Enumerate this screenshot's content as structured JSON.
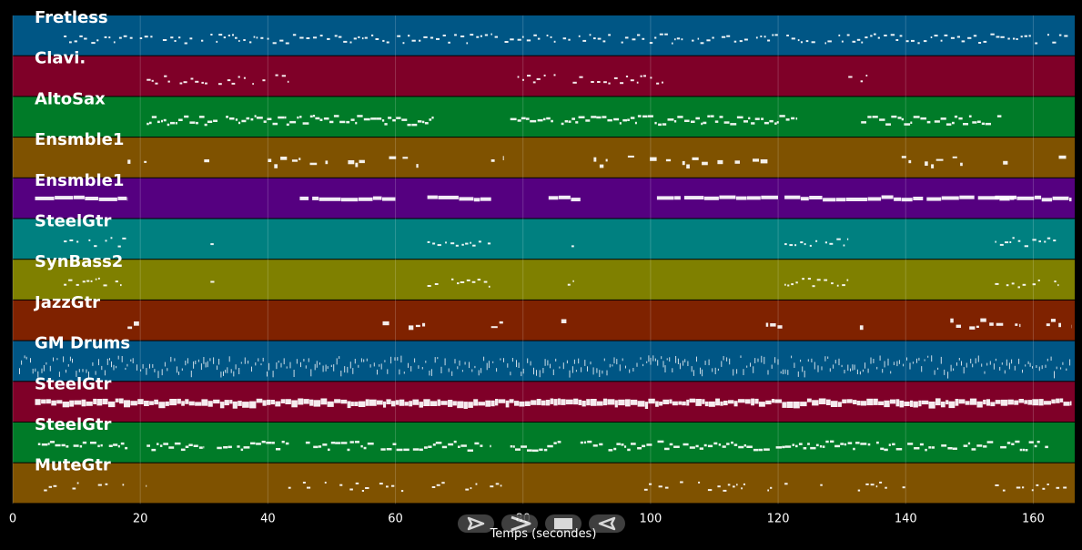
{
  "chart_data": {
    "type": "piano-roll",
    "xlabel": "Temps (secondes)",
    "xlim": [
      0,
      166.5
    ],
    "xticks": [
      0,
      20,
      40,
      60,
      80,
      100,
      120,
      140,
      160
    ],
    "grid": true,
    "tracks": [
      {
        "name": "Fretless",
        "color": "#005685",
        "density": 0.85,
        "style": "sparse",
        "segments": [
          [
            8,
            166
          ]
        ]
      },
      {
        "name": "Clavi.",
        "color": "#7f0028",
        "density": 0.8,
        "style": "sparse",
        "segments": [
          [
            21,
            45
          ],
          [
            78,
            102
          ],
          [
            131,
            134
          ]
        ]
      },
      {
        "name": "AltoSax",
        "color": "#007b28",
        "density": 0.95,
        "style": "thick",
        "segments": [
          [
            21,
            66
          ],
          [
            78,
            123
          ],
          [
            133,
            155
          ]
        ]
      },
      {
        "name": "Ensmble1",
        "color": "#7f5200",
        "density": 0.5,
        "style": "block",
        "segments": [
          [
            18,
            21
          ],
          [
            30,
            32
          ],
          [
            40,
            56
          ],
          [
            59,
            64
          ],
          [
            75,
            77
          ],
          [
            89,
            98
          ],
          [
            99,
            114
          ],
          [
            116,
            120
          ],
          [
            132,
            134
          ],
          [
            138,
            150
          ],
          [
            151,
            156
          ],
          [
            164,
            166
          ]
        ]
      },
      {
        "name": "Ensmble1",
        "color": "#550080",
        "density": 1.0,
        "style": "heavy",
        "segments": [
          [
            3.5,
            18
          ],
          [
            45,
            60
          ],
          [
            65,
            75
          ],
          [
            84,
            89
          ],
          [
            101,
            120
          ],
          [
            121,
            157
          ],
          [
            154,
            166
          ]
        ]
      },
      {
        "name": "SteelGtr",
        "color": "#008080",
        "density": 0.85,
        "style": "sparse",
        "segments": [
          [
            8,
            18
          ],
          [
            31,
            32
          ],
          [
            65,
            75
          ],
          [
            87,
            88
          ],
          [
            121,
            131
          ],
          [
            154,
            164
          ]
        ]
      },
      {
        "name": "SynBass2",
        "color": "#7f8000",
        "density": 0.85,
        "style": "sparse",
        "segments": [
          [
            8,
            18
          ],
          [
            31,
            32
          ],
          [
            65,
            75
          ],
          [
            87,
            88
          ],
          [
            121,
            131
          ],
          [
            154,
            164
          ]
        ]
      },
      {
        "name": "JazzGtr",
        "color": "#7f2200",
        "density": 0.7,
        "style": "block",
        "segments": [
          [
            18,
            21
          ],
          [
            29,
            32
          ],
          [
            58,
            65
          ],
          [
            75,
            77
          ],
          [
            86,
            88
          ],
          [
            117,
            121
          ],
          [
            132,
            134
          ],
          [
            147,
            158
          ],
          [
            161,
            166
          ]
        ]
      },
      {
        "name": "GM Drums",
        "color": "#005685",
        "density": 1.0,
        "style": "drums",
        "segments": [
          [
            1,
            166
          ]
        ]
      },
      {
        "name": "SteelGtr",
        "color": "#7f0028",
        "density": 1.0,
        "style": "dense",
        "segments": [
          [
            3.5,
            166
          ]
        ]
      },
      {
        "name": "SteelGtr",
        "color": "#007b28",
        "density": 0.9,
        "style": "thick",
        "segments": [
          [
            3.5,
            18
          ],
          [
            21,
            30
          ],
          [
            32,
            44
          ],
          [
            45,
            75
          ],
          [
            78,
            86
          ],
          [
            89,
            163
          ]
        ]
      },
      {
        "name": "MuteGtr",
        "color": "#7f5200",
        "density": 0.55,
        "style": "sparse",
        "segments": [
          [
            4,
            21
          ],
          [
            42,
            62
          ],
          [
            65,
            77
          ],
          [
            99,
            121
          ],
          [
            121,
            140
          ],
          [
            154,
            166
          ]
        ]
      }
    ]
  },
  "controls": [
    {
      "icon": "play-icon"
    },
    {
      "icon": "forward-icon"
    },
    {
      "icon": "stop-icon"
    },
    {
      "icon": "rewind-icon"
    }
  ]
}
